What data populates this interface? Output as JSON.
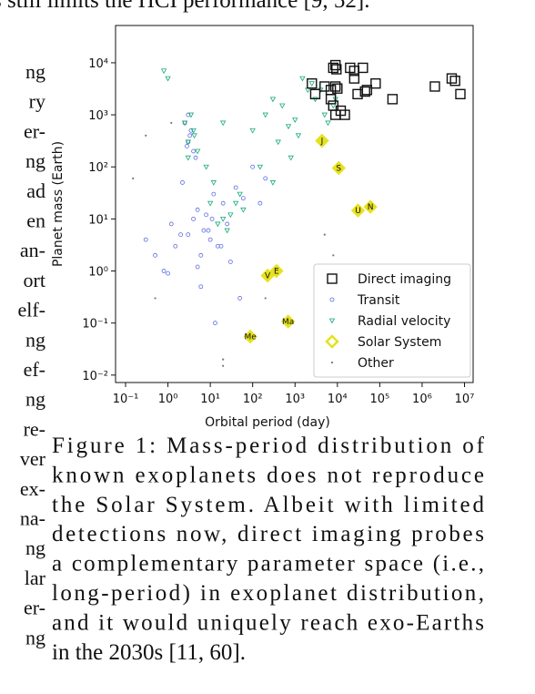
{
  "page_text": {
    "top_line": "s still limits the HCI performance [9, 52].",
    "left_fragments": [
      "ng",
      "ry",
      "er-",
      "ng",
      "ad",
      "en",
      "an-",
      "ort",
      "elf-",
      "ng",
      "ef-",
      "ng",
      "re-",
      "ver",
      "ex-",
      "na-",
      "ng",
      "lar",
      "er-",
      "ng"
    ],
    "caption": [
      "Figure 1:  Mass-period distribution of",
      "known exoplanets does not reproduce",
      "the Solar System.  Albeit with limited",
      "detections now, direct imaging probes",
      "a complementary parameter space (i.e.,",
      "long-period) in exoplanet distribution,",
      "and it would uniquely reach exo-Earths",
      "in the 2030s [11, 60]."
    ]
  },
  "chart_data": {
    "type": "scatter",
    "xlabel": "Orbital period (day)",
    "ylabel": "Planet mass (Earth)",
    "xscale": "log",
    "yscale": "log",
    "xlim": [
      0.058,
      16000000
    ],
    "ylim": [
      0.0072,
      52000
    ],
    "xticks": [
      {
        "value": 0.1,
        "label": "10⁻¹"
      },
      {
        "value": 1,
        "label": "10⁰"
      },
      {
        "value": 10,
        "label": "10¹"
      },
      {
        "value": 100,
        "label": "10²"
      },
      {
        "value": 1000,
        "label": "10³"
      },
      {
        "value": 10000,
        "label": "10⁴"
      },
      {
        "value": 100000,
        "label": "10⁵"
      },
      {
        "value": 1000000,
        "label": "10⁶"
      },
      {
        "value": 10000000,
        "label": "10⁷"
      }
    ],
    "yticks": [
      {
        "value": 0.01,
        "label": "10⁻²"
      },
      {
        "value": 0.1,
        "label": "10⁻¹"
      },
      {
        "value": 1,
        "label": "10⁰"
      },
      {
        "value": 10,
        "label": "10¹"
      },
      {
        "value": 100,
        "label": "10²"
      },
      {
        "value": 1000,
        "label": "10³"
      },
      {
        "value": 10000,
        "label": "10⁴"
      }
    ],
    "legend": "lower right",
    "series": [
      {
        "name": "Transit",
        "color": "#5b6be0",
        "marker": "circle",
        "x": [
          1.2,
          2,
          3,
          3.5,
          4,
          5,
          7,
          10,
          15,
          20,
          2.5,
          3,
          4,
          6,
          8,
          12,
          25,
          40,
          1.5,
          2.2,
          3.3,
          4.5,
          0.8,
          0.5,
          1,
          9,
          30,
          60,
          100,
          200,
          3,
          2.8,
          5,
          6,
          11,
          18,
          0.3,
          50,
          150,
          13
        ],
        "values": [
          8,
          5,
          300,
          500,
          10,
          15,
          6,
          4,
          3,
          20,
          700,
          1000,
          200,
          2,
          12,
          30,
          8,
          40,
          3,
          50,
          400,
          150,
          1,
          2,
          0.9,
          6,
          1.5,
          25,
          100,
          60,
          5,
          250,
          1.2,
          0.5,
          10,
          3,
          4,
          0.3,
          20,
          0.1
        ]
      },
      {
        "name": "Radial velocity",
        "color": "#19a97a",
        "marker": "triangle",
        "x": [
          3,
          4,
          3.5,
          5,
          2.5,
          10,
          20,
          50,
          100,
          200,
          300,
          500,
          1000,
          2000,
          3000,
          5000,
          8000,
          400,
          700,
          1500,
          2500,
          4000,
          6000,
          15,
          30,
          60,
          8,
          12,
          25,
          40,
          1,
          0.8,
          300,
          800,
          1200,
          9000,
          150,
          3,
          4.2,
          20
        ],
        "values": [
          300,
          500,
          1000,
          200,
          700,
          20,
          10,
          30,
          500,
          1000,
          2000,
          1500,
          800,
          3000,
          2000,
          1000,
          1500,
          300,
          600,
          5000,
          4000,
          3000,
          700,
          8,
          12,
          15,
          100,
          50,
          6,
          20,
          5000,
          7000,
          50,
          150,
          400,
          2000,
          100,
          150,
          400,
          700
        ]
      },
      {
        "name": "Other",
        "color": "#777777",
        "marker": "dot",
        "x": [
          0.3,
          0.15,
          0.5,
          3000,
          8000,
          20,
          20,
          1.2,
          200,
          5000
        ],
        "values": [
          400,
          60,
          0.3,
          0.4,
          2,
          0.02,
          0.015,
          700,
          0.3,
          5
        ]
      },
      {
        "name": "Direct imaging",
        "color": "#111111",
        "marker": "square",
        "x": [
          8000,
          9000,
          9500,
          20000,
          25000,
          40000,
          25000,
          5000,
          7000,
          9000,
          10000,
          2500,
          3000,
          8000,
          9000,
          12000,
          15000,
          30000,
          50000,
          80000,
          200000,
          2000000,
          5000000,
          6000000,
          8000000,
          7000,
          45000
        ],
        "values": [
          8000,
          9000,
          7500,
          8000,
          7000,
          8000,
          5000,
          3500,
          3000,
          3500,
          3200,
          4000,
          2500,
          1500,
          1000,
          1200,
          1000,
          2500,
          3000,
          4000,
          2000,
          3500,
          5000,
          4500,
          2500,
          2000,
          2800
        ]
      },
      {
        "name": "Solar System",
        "color": "#e6e21e",
        "marker": "diamond",
        "x": [
          88,
          225,
          365,
          687,
          4333,
          10759,
          30687,
          60190
        ],
        "values": [
          0.055,
          0.815,
          1,
          0.107,
          318,
          95,
          14.5,
          17.1
        ],
        "labels": [
          "Me",
          "V",
          "E",
          "Ma",
          "J",
          "S",
          "U",
          "N"
        ]
      }
    ],
    "legend_order": [
      3,
      0,
      1,
      4,
      2
    ]
  }
}
